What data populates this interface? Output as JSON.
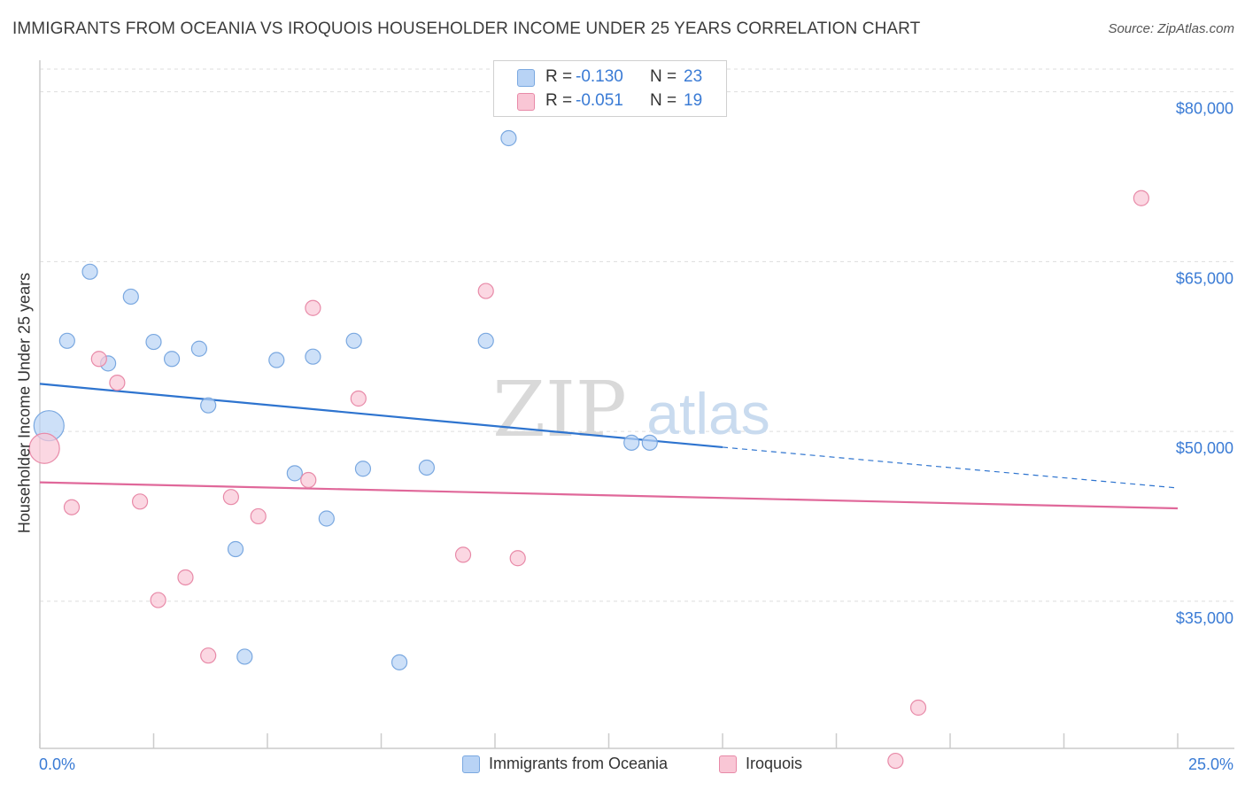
{
  "title": "IMMIGRANTS FROM OCEANIA VS IROQUOIS HOUSEHOLDER INCOME UNDER 25 YEARS CORRELATION CHART",
  "source": "Source: ZipAtlas.com",
  "watermark": {
    "zip": "ZIP",
    "atlas": "atlas"
  },
  "legend_top": [
    {
      "r_label": "R =",
      "r_value": "-0.130",
      "n_label": "N =",
      "n_value": "23"
    },
    {
      "r_label": "R =",
      "r_value": "-0.051",
      "n_label": "N =",
      "n_value": "19"
    }
  ],
  "legend_bottom": [
    {
      "label": "Immigrants from Oceania"
    },
    {
      "label": "Iroquois"
    }
  ],
  "colors": {
    "blue_fill": "#b8d3f5",
    "blue_stroke": "#7aa8e0",
    "blue_line": "#2e74cf",
    "pink_fill": "#f9c6d5",
    "pink_stroke": "#e88aa8",
    "pink_line": "#e0689a",
    "tick_text": "#3a7bd5",
    "grid": "#dddddd"
  },
  "chart_data": {
    "type": "scatter",
    "title": "IMMIGRANTS FROM OCEANIA VS IROQUOIS HOUSEHOLDER INCOME UNDER 25 YEARS CORRELATION CHART",
    "xlabel": "",
    "ylabel": "Householder Income Under 25 years",
    "xlim": [
      0,
      25
    ],
    "ylim": [
      22000,
      82000
    ],
    "x_tick_labels": [
      "0.0%",
      "25.0%"
    ],
    "y_ticks": [
      {
        "value": 80000,
        "label": "$80,000"
      },
      {
        "value": 65000,
        "label": "$65,000"
      },
      {
        "value": 50000,
        "label": "$50,000"
      },
      {
        "value": 35000,
        "label": "$35,000"
      }
    ],
    "series": [
      {
        "name": "Immigrants from Oceania",
        "color": "blue",
        "r": -0.13,
        "n": 23,
        "trend": {
          "x": [
            0,
            15
          ],
          "y": [
            54200,
            48600
          ],
          "dash_to_x": 25,
          "dash_to_y": 45000
        },
        "points": [
          {
            "x": 0.2,
            "y": 50500,
            "big": true
          },
          {
            "x": 1.1,
            "y": 64100
          },
          {
            "x": 2.0,
            "y": 61900
          },
          {
            "x": 0.6,
            "y": 58000
          },
          {
            "x": 1.5,
            "y": 56000
          },
          {
            "x": 2.5,
            "y": 57900
          },
          {
            "x": 2.9,
            "y": 56400
          },
          {
            "x": 3.5,
            "y": 57300
          },
          {
            "x": 3.7,
            "y": 52300
          },
          {
            "x": 5.2,
            "y": 56300
          },
          {
            "x": 6.0,
            "y": 56600
          },
          {
            "x": 6.9,
            "y": 58000
          },
          {
            "x": 5.6,
            "y": 46300
          },
          {
            "x": 7.1,
            "y": 46700
          },
          {
            "x": 8.5,
            "y": 46800
          },
          {
            "x": 6.3,
            "y": 42300
          },
          {
            "x": 4.3,
            "y": 39600
          },
          {
            "x": 4.5,
            "y": 30100
          },
          {
            "x": 7.9,
            "y": 29600
          },
          {
            "x": 9.8,
            "y": 58000
          },
          {
            "x": 13.0,
            "y": 49000
          },
          {
            "x": 13.4,
            "y": 49000
          },
          {
            "x": 10.3,
            "y": 75900
          }
        ]
      },
      {
        "name": "Iroquois",
        "color": "pink",
        "r": -0.051,
        "n": 19,
        "trend": {
          "x": [
            0,
            25
          ],
          "y": [
            45500,
            43200
          ]
        },
        "points": [
          {
            "x": 0.1,
            "y": 48500,
            "big": true
          },
          {
            "x": 1.3,
            "y": 56400
          },
          {
            "x": 1.7,
            "y": 54300
          },
          {
            "x": 0.7,
            "y": 43300
          },
          {
            "x": 2.2,
            "y": 43800
          },
          {
            "x": 4.2,
            "y": 44200
          },
          {
            "x": 4.8,
            "y": 42500
          },
          {
            "x": 5.9,
            "y": 45700
          },
          {
            "x": 6.0,
            "y": 60900
          },
          {
            "x": 7.0,
            "y": 52900
          },
          {
            "x": 9.8,
            "y": 62400
          },
          {
            "x": 9.3,
            "y": 39100
          },
          {
            "x": 10.5,
            "y": 38800
          },
          {
            "x": 3.2,
            "y": 37100
          },
          {
            "x": 2.6,
            "y": 35100
          },
          {
            "x": 3.7,
            "y": 30200
          },
          {
            "x": 24.2,
            "y": 70600
          },
          {
            "x": 19.3,
            "y": 25600
          },
          {
            "x": 18.8,
            "y": 20900
          }
        ]
      }
    ]
  }
}
